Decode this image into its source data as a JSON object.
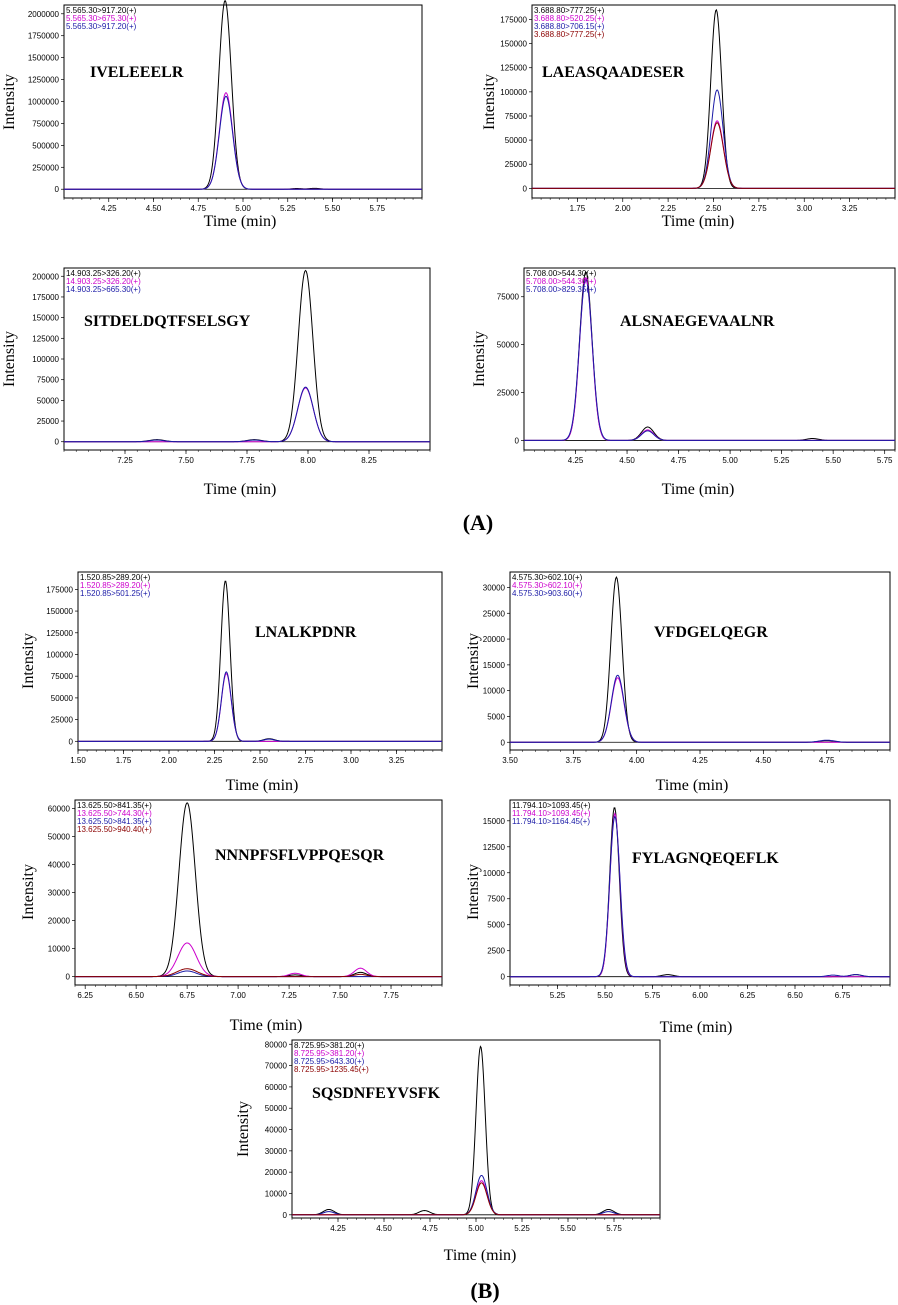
{
  "colors": {
    "black": "#000000",
    "magenta": "#cc00cc",
    "blue": "#1a1aa6",
    "darkred": "#8b0000"
  },
  "panels": [
    {
      "label": "(A)",
      "icon": "label"
    },
    {
      "label": "(B)",
      "icon": "label"
    }
  ],
  "chart_data": [
    {
      "type": "line",
      "panel": "A",
      "title": "IVELEEELR",
      "xlabel": "Time (min)",
      "ylabel": "Intensity",
      "xlim": [
        4.0,
        6.0
      ],
      "ylim": [
        -100000,
        2100000
      ],
      "xticks": [
        4.25,
        4.5,
        4.75,
        5.0,
        5.25,
        5.5,
        5.75
      ],
      "xtick_labels": [
        "4.25",
        "4.50",
        "4.75",
        "5.00",
        "5.25",
        "5.50",
        "5.75"
      ],
      "yticks": [
        0,
        250000,
        500000,
        750000,
        1000000,
        1250000,
        1500000,
        1750000,
        2000000
      ],
      "ytick_labels": [
        "0",
        "250000",
        "500000",
        "750000",
        "1000000",
        "1250000",
        "1500000",
        "1750000",
        "2000000"
      ],
      "legend": [
        "5.565.30>917.20(+)",
        "5.565.30>675.30(+)",
        "5.565.30>917.20(+)"
      ],
      "series": [
        {
          "name": "5.565.30>917.20(+)",
          "color": "black",
          "peaks": [
            {
              "rt": 4.9,
              "height": 2150000,
              "width": 0.035
            }
          ],
          "small": [
            [
              5.3,
              8000
            ],
            [
              5.4,
              10000
            ]
          ]
        },
        {
          "name": "5.565.30>675.30(+)",
          "color": "magenta",
          "peaks": [
            {
              "rt": 4.905,
              "height": 1100000,
              "width": 0.037
            }
          ],
          "small": []
        },
        {
          "name": "5.565.30>917.20(+)",
          "color": "blue",
          "peaks": [
            {
              "rt": 4.905,
              "height": 1060000,
              "width": 0.037
            }
          ],
          "small": []
        }
      ]
    },
    {
      "type": "line",
      "panel": "A",
      "title": "LAEASQAADESER",
      "xlabel": "Time (min)",
      "ylabel": "Intensity",
      "xlim": [
        1.5,
        3.5
      ],
      "ylim": [
        -10000,
        190000
      ],
      "xticks": [
        1.75,
        2.0,
        2.25,
        2.5,
        2.75,
        3.0,
        3.25
      ],
      "xtick_labels": [
        "1.75",
        "2.00",
        "2.25",
        "2.50",
        "2.75",
        "3.00",
        "3.25"
      ],
      "yticks": [
        0,
        25000,
        50000,
        75000,
        100000,
        125000,
        150000,
        175000
      ],
      "ytick_labels": [
        "0",
        "25000",
        "50000",
        "75000",
        "100000",
        "125000",
        "150000",
        "175000"
      ],
      "legend": [
        "3.688.80>777.25(+)",
        "3.688.80>520.25(+)",
        "3.688.80>706.15(+)",
        "3.688.80>777.25(+)"
      ],
      "series": [
        {
          "name": "3.688.80>777.25(+)",
          "color": "black",
          "peaks": [
            {
              "rt": 2.515,
              "height": 185000,
              "width": 0.03
            }
          ],
          "small": []
        },
        {
          "name": "3.688.80>520.25(+)",
          "color": "magenta",
          "peaks": [
            {
              "rt": 2.52,
              "height": 70000,
              "width": 0.035
            }
          ],
          "small": []
        },
        {
          "name": "3.688.80>706.15(+)",
          "color": "blue",
          "peaks": [
            {
              "rt": 2.52,
              "height": 102000,
              "width": 0.033
            }
          ],
          "small": []
        },
        {
          "name": "3.688.80>777.25(+)",
          "color": "darkred",
          "peaks": [
            {
              "rt": 2.52,
              "height": 68000,
              "width": 0.035
            }
          ],
          "small": []
        }
      ]
    },
    {
      "type": "line",
      "panel": "A",
      "title": "SITDELDQTFSELSGY",
      "xlabel": "Time (min)",
      "ylabel": "Intensity",
      "xlim": [
        7.0,
        8.5
      ],
      "ylim": [
        -10000,
        210000
      ],
      "xticks": [
        7.25,
        7.5,
        7.75,
        8.0,
        8.25
      ],
      "xtick_labels": [
        "7.25",
        "7.50",
        "7.75",
        "8.00",
        "8.25"
      ],
      "yticks": [
        0,
        25000,
        50000,
        75000,
        100000,
        125000,
        150000,
        175000,
        200000
      ],
      "ytick_labels": [
        "0",
        "25000",
        "50000",
        "75000",
        "100000",
        "125000",
        "150000",
        "175000",
        "200000"
      ],
      "legend": [
        "14.903.25>326.20(+)",
        "14.903.25>326.20(+)",
        "14.903.25>665.30(+)"
      ],
      "series": [
        {
          "name": "14.903.25>326.20(+)",
          "color": "black",
          "peaks": [
            {
              "rt": 7.99,
              "height": 207000,
              "width": 0.03
            }
          ],
          "small": [
            [
              7.38,
              2500
            ],
            [
              7.78,
              2500
            ]
          ]
        },
        {
          "name": "14.903.25>326.20(+)",
          "color": "magenta",
          "peaks": [
            {
              "rt": 7.99,
              "height": 65000,
              "width": 0.032
            }
          ],
          "small": []
        },
        {
          "name": "14.903.25>665.30(+)",
          "color": "blue",
          "peaks": [
            {
              "rt": 7.99,
              "height": 66000,
              "width": 0.032
            }
          ],
          "small": [
            [
              7.38,
              2000
            ],
            [
              7.78,
              2000
            ]
          ]
        }
      ]
    },
    {
      "type": "line",
      "panel": "A",
      "title": "ALSNAEGEVAALNR",
      "xlabel": "Time (min)",
      "ylabel": "Intensity",
      "xlim": [
        4.0,
        5.8
      ],
      "ylim": [
        -5000,
        90000
      ],
      "xticks": [
        4.25,
        4.5,
        4.75,
        5.0,
        5.25,
        5.5,
        5.75
      ],
      "xtick_labels": [
        "4.25",
        "4.50",
        "4.75",
        "5.00",
        "5.25",
        "5.50",
        "5.75"
      ],
      "yticks": [
        0,
        25000,
        50000,
        75000
      ],
      "ytick_labels": [
        "0",
        "25000",
        "50000",
        "75000"
      ],
      "legend": [
        "5.708.00>544.30(+)",
        "5.708.00>544.30(+)",
        "5.708.00>829.35(+)"
      ],
      "series": [
        {
          "name": "5.708.00>544.30(+)",
          "color": "black",
          "peaks": [
            {
              "rt": 4.3,
              "height": 88000,
              "width": 0.03
            },
            {
              "rt": 4.6,
              "height": 7000,
              "width": 0.03
            }
          ],
          "small": [
            [
              5.4,
              1000
            ]
          ]
        },
        {
          "name": "5.708.00>544.30(+)",
          "color": "magenta",
          "peaks": [
            {
              "rt": 4.3,
              "height": 85000,
              "width": 0.03
            },
            {
              "rt": 4.6,
              "height": 5500,
              "width": 0.03
            }
          ],
          "small": []
        },
        {
          "name": "5.708.00>829.35(+)",
          "color": "blue",
          "peaks": [
            {
              "rt": 4.3,
              "height": 84000,
              "width": 0.031
            },
            {
              "rt": 4.6,
              "height": 5000,
              "width": 0.03
            }
          ],
          "small": []
        }
      ]
    },
    {
      "type": "line",
      "panel": "B",
      "title": "LNALKPDNR",
      "xlabel": "Time (min)",
      "ylabel": "Intensity",
      "xlim": [
        1.5,
        3.5
      ],
      "ylim": [
        -10000,
        195000
      ],
      "xticks": [
        1.5,
        1.75,
        2.0,
        2.25,
        2.5,
        2.75,
        3.0,
        3.25
      ],
      "xtick_labels": [
        "1.50",
        "1.75",
        "2.00",
        "2.25",
        "2.50",
        "2.75",
        "3.00",
        "3.25"
      ],
      "yticks": [
        0,
        25000,
        50000,
        75000,
        100000,
        125000,
        150000,
        175000
      ],
      "ytick_labels": [
        "0",
        "25000",
        "50000",
        "75000",
        "100000",
        "125000",
        "150000",
        "175000"
      ],
      "legend": [
        "1.520.85>289.20(+)",
        "1.520.85>289.20(+)",
        "1.520.85>501.25(+)"
      ],
      "series": [
        {
          "name": "1.520.85>289.20(+)",
          "color": "black",
          "peaks": [
            {
              "rt": 2.31,
              "height": 185000,
              "width": 0.025
            }
          ],
          "small": [
            [
              2.55,
              3000
            ]
          ]
        },
        {
          "name": "1.520.85>289.20(+)",
          "color": "magenta",
          "peaks": [
            {
              "rt": 2.315,
              "height": 78000,
              "width": 0.027
            }
          ],
          "small": []
        },
        {
          "name": "1.520.85>501.25(+)",
          "color": "blue",
          "peaks": [
            {
              "rt": 2.315,
              "height": 80000,
              "width": 0.027
            }
          ],
          "small": [
            [
              2.55,
              2500
            ]
          ]
        }
      ]
    },
    {
      "type": "line",
      "panel": "B",
      "title": "VFDGELQEGR",
      "xlabel": "Time (min)",
      "ylabel": "Intensity",
      "xlim": [
        3.5,
        5.0
      ],
      "ylim": [
        -1500,
        33000
      ],
      "xticks": [
        3.5,
        3.75,
        4.0,
        4.25,
        4.5,
        4.75
      ],
      "xtick_labels": [
        "3.50",
        "3.75",
        "4.00",
        "4.25",
        "4.50",
        "4.75"
      ],
      "yticks": [
        0,
        5000,
        10000,
        15000,
        20000,
        25000,
        30000
      ],
      "ytick_labels": [
        "0",
        "5000",
        "10000",
        "15000",
        "20000",
        "25000",
        "30000"
      ],
      "legend": [
        "4.575.30>602.10(+)",
        "4.575.30>602.10(+)",
        "4.575.30>903.60(+)"
      ],
      "series": [
        {
          "name": "4.575.30>602.10(+)",
          "color": "black",
          "peaks": [
            {
              "rt": 3.92,
              "height": 32000,
              "width": 0.022
            }
          ],
          "small": [
            [
              4.75,
              300
            ]
          ]
        },
        {
          "name": "4.575.30>602.10(+)",
          "color": "magenta",
          "peaks": [
            {
              "rt": 3.925,
              "height": 12500,
              "width": 0.025
            }
          ],
          "small": []
        },
        {
          "name": "4.575.30>903.60(+)",
          "color": "blue",
          "peaks": [
            {
              "rt": 3.925,
              "height": 13000,
              "width": 0.025
            }
          ],
          "small": [
            [
              4.75,
              400
            ]
          ]
        }
      ]
    },
    {
      "type": "line",
      "panel": "B",
      "title": "NNNPFSFLVPPQESQR",
      "xlabel": "Time (min)",
      "ylabel": "Intensity",
      "xlim": [
        6.2,
        8.0
      ],
      "ylim": [
        -3000,
        63000
      ],
      "xticks": [
        6.25,
        6.5,
        6.75,
        7.0,
        7.25,
        7.5,
        7.75
      ],
      "xtick_labels": [
        "6.25",
        "6.50",
        "6.75",
        "7.00",
        "7.25",
        "7.50",
        "7.75"
      ],
      "yticks": [
        0,
        10000,
        20000,
        30000,
        40000,
        50000,
        60000
      ],
      "ytick_labels": [
        "0",
        "10000",
        "20000",
        "30000",
        "40000",
        "50000",
        "60000"
      ],
      "legend": [
        "13.625.50>841.35(+)",
        "13.625.50>744.30(+)",
        "13.625.50>841.35(+)",
        "13.625.50>940.40(+)"
      ],
      "series": [
        {
          "name": "13.625.50>841.35(+)",
          "color": "black",
          "peaks": [
            {
              "rt": 6.75,
              "height": 62000,
              "width": 0.04
            }
          ],
          "small": [
            [
              7.28,
              600
            ],
            [
              7.6,
              1500
            ]
          ]
        },
        {
          "name": "13.625.50>744.30(+)",
          "color": "magenta",
          "peaks": [
            {
              "rt": 6.75,
              "height": 12000,
              "width": 0.045
            }
          ],
          "small": [
            [
              7.28,
              1200
            ],
            [
              7.6,
              3000
            ]
          ]
        },
        {
          "name": "13.625.50>841.35(+)",
          "color": "blue",
          "peaks": [
            {
              "rt": 6.75,
              "height": 2000,
              "width": 0.045
            }
          ],
          "small": []
        },
        {
          "name": "13.625.50>940.40(+)",
          "color": "darkred",
          "peaks": [
            {
              "rt": 6.75,
              "height": 2800,
              "width": 0.05
            }
          ],
          "small": [
            [
              7.6,
              800
            ]
          ]
        }
      ]
    },
    {
      "type": "line",
      "panel": "B",
      "title": "FYLAGNQEQEFLK",
      "xlabel": "Time (min)",
      "ylabel": "Intensity",
      "xlim": [
        5.0,
        7.0
      ],
      "ylim": [
        -800,
        17000
      ],
      "xticks": [
        5.25,
        5.5,
        5.75,
        6.0,
        6.25,
        6.5,
        6.75
      ],
      "xtick_labels": [
        "5.25",
        "5.50",
        "5.75",
        "6.00",
        "6.25",
        "6.50",
        "6.75"
      ],
      "yticks": [
        0,
        2500,
        5000,
        7500,
        10000,
        12500,
        15000
      ],
      "ytick_labels": [
        "0",
        "2500",
        "5000",
        "7500",
        "10000",
        "12500",
        "15000"
      ],
      "legend": [
        "11.794.10>1093.45(+)",
        "11.794.10>1093.45(+)",
        "11.794.10>1164.45(+)"
      ],
      "series": [
        {
          "name": "11.794.10>1093.45(+)",
          "color": "black",
          "peaks": [
            {
              "rt": 5.55,
              "height": 16300,
              "width": 0.025
            }
          ],
          "small": [
            [
              5.83,
              200
            ],
            [
              6.82,
              200
            ]
          ]
        },
        {
          "name": "11.794.10>1093.45(+)",
          "color": "magenta",
          "peaks": [
            {
              "rt": 5.552,
              "height": 15700,
              "width": 0.026
            }
          ],
          "small": []
        },
        {
          "name": "11.794.10>1164.45(+)",
          "color": "blue",
          "peaks": [
            {
              "rt": 5.552,
              "height": 15400,
              "width": 0.027
            }
          ],
          "small": [
            [
              6.7,
              150
            ],
            [
              6.82,
              200
            ]
          ]
        }
      ]
    },
    {
      "type": "line",
      "panel": "B",
      "title": "SQSDNFEYVSFK",
      "xlabel": "Time (min)",
      "ylabel": "Intensity",
      "xlim": [
        4.0,
        6.0
      ],
      "ylim": [
        -1500,
        82000
      ],
      "xticks": [
        4.25,
        4.5,
        4.75,
        5.0,
        5.25,
        5.5,
        5.75
      ],
      "xtick_labels": [
        "4.25",
        "4.50",
        "4.75",
        "5.00",
        "5.25",
        "5.50",
        "5.75"
      ],
      "yticks": [
        0,
        10000,
        20000,
        30000,
        40000,
        50000,
        60000,
        70000,
        80000
      ],
      "ytick_labels": [
        "0",
        "10000",
        "20000",
        "30000",
        "40000",
        "50000",
        "60000",
        "70000",
        "80000"
      ],
      "legend": [
        "8.725.95>381.20(+)",
        "8.725.95>381.20(+)",
        "8.725.95>643.30(+)",
        "8.725.95>1235.45(+)"
      ],
      "series": [
        {
          "name": "8.725.95>381.20(+)",
          "color": "black",
          "peaks": [
            {
              "rt": 5.025,
              "height": 79000,
              "width": 0.025
            }
          ],
          "small": [
            [
              4.2,
              2500
            ],
            [
              4.72,
              2000
            ],
            [
              5.72,
              2500
            ]
          ]
        },
        {
          "name": "8.725.95>381.20(+)",
          "color": "magenta",
          "peaks": [
            {
              "rt": 5.03,
              "height": 16000,
              "width": 0.03
            }
          ],
          "small": []
        },
        {
          "name": "8.725.95>643.30(+)",
          "color": "blue",
          "peaks": [
            {
              "rt": 5.03,
              "height": 18500,
              "width": 0.03
            }
          ],
          "small": [
            [
              4.2,
              1500
            ],
            [
              5.72,
              1500
            ]
          ]
        },
        {
          "name": "8.725.95>1235.45(+)",
          "color": "darkred",
          "peaks": [
            {
              "rt": 5.03,
              "height": 15000,
              "width": 0.03
            }
          ],
          "small": []
        }
      ]
    }
  ]
}
